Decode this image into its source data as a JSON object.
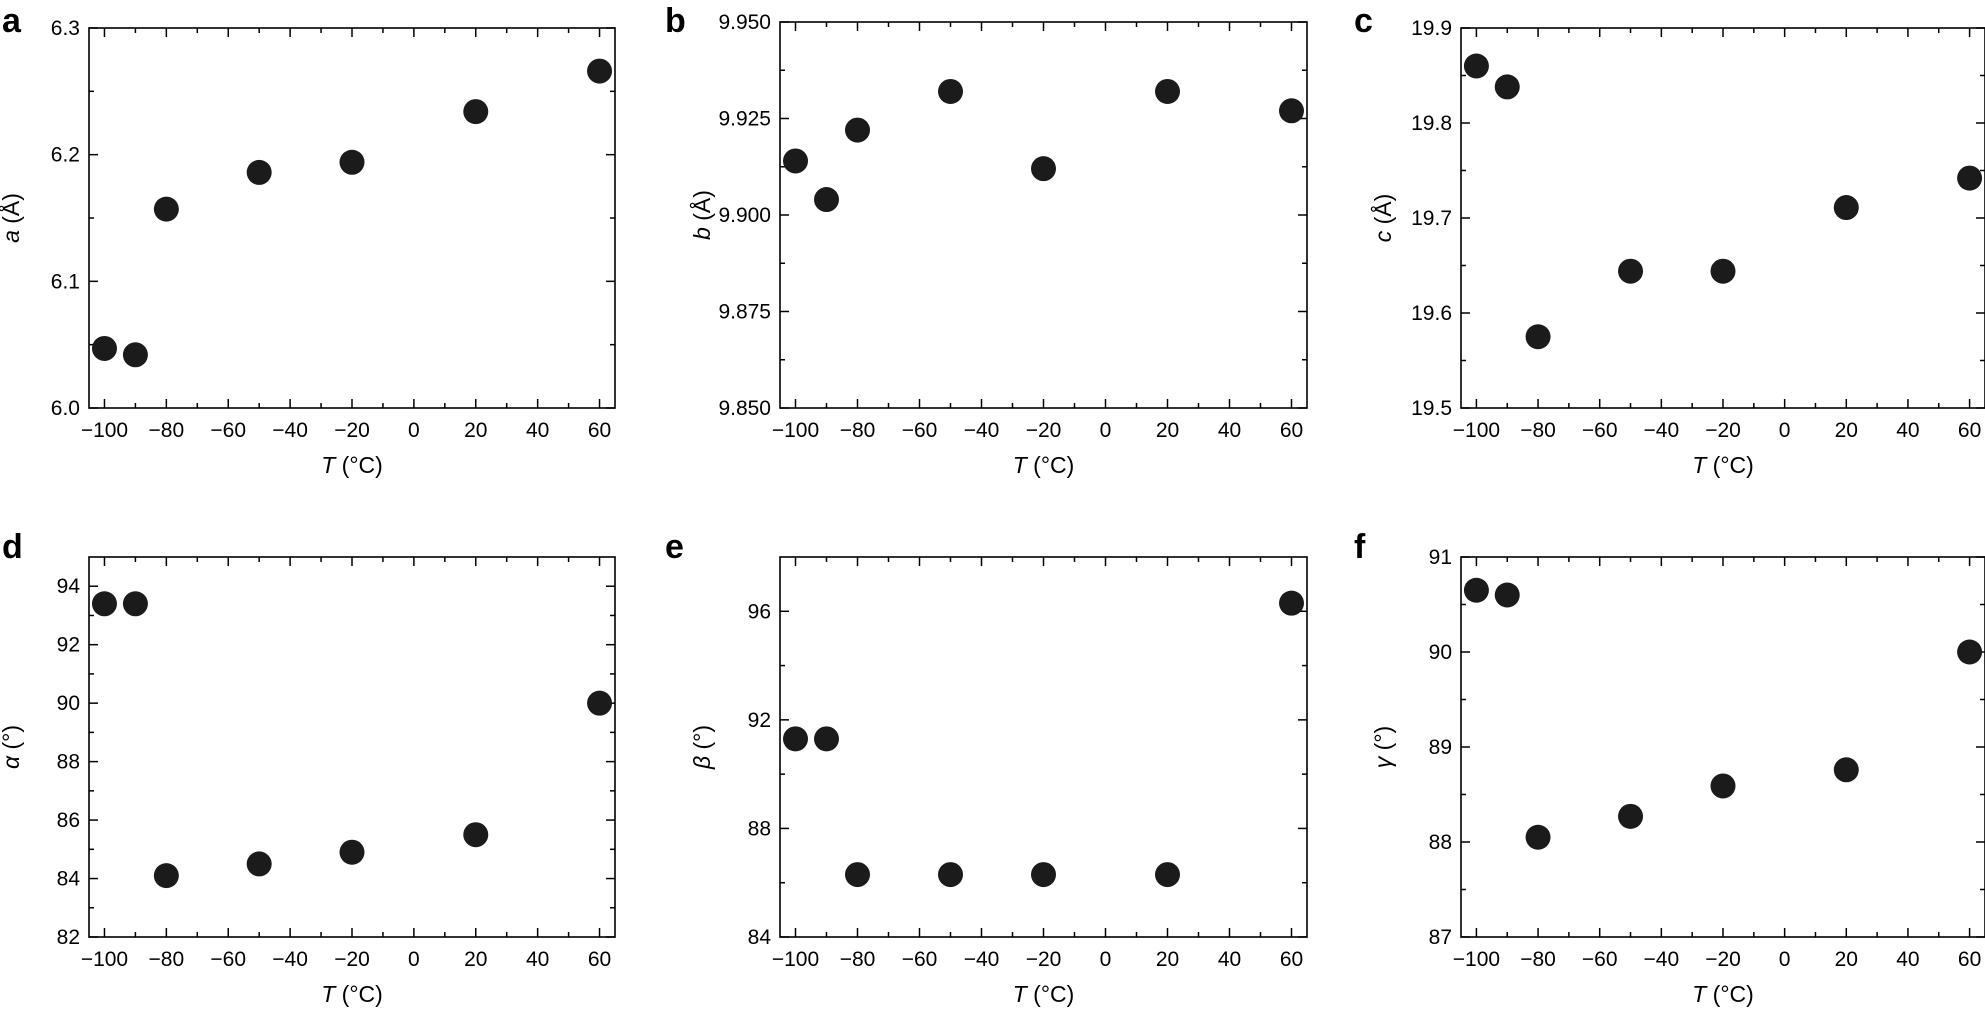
{
  "chart_data": [
    {
      "type": "scatter",
      "panel": "a",
      "xlabel": "T (°C)",
      "xlabel_var": "T",
      "xlabel_unit": " (°C)",
      "ylabel": "a (Å)",
      "ylabel_var": "a",
      "ylabel_unit": " (Å)",
      "xlim": [
        -105,
        65
      ],
      "ylim": [
        6.0,
        6.3
      ],
      "xticks": [
        -100,
        -80,
        -60,
        -40,
        -20,
        0,
        20,
        40,
        60
      ],
      "xtick_labels": [
        "−100",
        "−80",
        "−60",
        "−40",
        "−20",
        "0",
        "20",
        "40",
        "60"
      ],
      "yticks": [
        6.0,
        6.1,
        6.2,
        6.3
      ],
      "ytick_labels": [
        "6.0",
        "6.1",
        "6.2",
        "6.3"
      ],
      "x": [
        -100,
        -90,
        -80,
        -50,
        -20,
        20,
        60
      ],
      "y": [
        6.047,
        6.042,
        6.157,
        6.186,
        6.194,
        6.234,
        6.266
      ]
    },
    {
      "type": "scatter",
      "panel": "b",
      "xlabel": "T (°C)",
      "xlabel_var": "T",
      "xlabel_unit": " (°C)",
      "ylabel": "b (Å)",
      "ylabel_var": "b",
      "ylabel_unit": " (Å)",
      "xlim": [
        -105,
        65
      ],
      "ylim": [
        9.85,
        9.95
      ],
      "xticks": [
        -100,
        -80,
        -60,
        -40,
        -20,
        0,
        20,
        40,
        60
      ],
      "xtick_labels": [
        "−100",
        "−80",
        "−60",
        "−40",
        "−20",
        "0",
        "20",
        "40",
        "60"
      ],
      "yticks": [
        9.85,
        9.875,
        9.9,
        9.925,
        9.95
      ],
      "ytick_labels": [
        "9.850",
        "9.875",
        "9.900",
        "9.925",
        "9.950"
      ],
      "x": [
        -100,
        -90,
        -80,
        -50,
        -20,
        20,
        60
      ],
      "y": [
        9.914,
        9.904,
        9.922,
        9.932,
        9.912,
        9.932,
        9.927
      ]
    },
    {
      "type": "scatter",
      "panel": "c",
      "xlabel": "T (°C)",
      "xlabel_var": "T",
      "xlabel_unit": " (°C)",
      "ylabel": "c (Å)",
      "ylabel_var": "c",
      "ylabel_unit": " (Å)",
      "xlim": [
        -105,
        65
      ],
      "ylim": [
        19.5,
        19.9
      ],
      "xticks": [
        -100,
        -80,
        -60,
        -40,
        -20,
        0,
        20,
        40,
        60
      ],
      "xtick_labels": [
        "−100",
        "−80",
        "−60",
        "−40",
        "−20",
        "0",
        "20",
        "40",
        "60"
      ],
      "yticks": [
        19.5,
        19.6,
        19.7,
        19.8,
        19.9
      ],
      "ytick_labels": [
        "19.5",
        "19.6",
        "19.7",
        "19.8",
        "19.9"
      ],
      "x": [
        -100,
        -90,
        -80,
        -50,
        -20,
        20,
        60
      ],
      "y": [
        19.86,
        19.838,
        19.575,
        19.644,
        19.644,
        19.711,
        19.742
      ]
    },
    {
      "type": "scatter",
      "panel": "d",
      "xlabel": "T (°C)",
      "xlabel_var": "T",
      "xlabel_unit": " (°C)",
      "ylabel": "α (°)",
      "ylabel_var": "α",
      "ylabel_unit": " (°)",
      "xlim": [
        -105,
        65
      ],
      "ylim": [
        82,
        95
      ],
      "xticks": [
        -100,
        -80,
        -60,
        -40,
        -20,
        0,
        20,
        40,
        60
      ],
      "xtick_labels": [
        "−100",
        "−80",
        "−60",
        "−40",
        "−20",
        "0",
        "20",
        "40",
        "60"
      ],
      "yticks": [
        82,
        84,
        86,
        88,
        90,
        92,
        94
      ],
      "ytick_labels": [
        "82",
        "84",
        "86",
        "88",
        "90",
        "92",
        "94"
      ],
      "x": [
        -100,
        -90,
        -80,
        -50,
        -20,
        20,
        60
      ],
      "y": [
        93.4,
        93.4,
        84.1,
        84.5,
        84.9,
        85.5,
        90.0
      ]
    },
    {
      "type": "scatter",
      "panel": "e",
      "xlabel": "T (°C)",
      "xlabel_var": "T",
      "xlabel_unit": " (°C)",
      "ylabel": "β (°)",
      "ylabel_var": "β",
      "ylabel_unit": " (°)",
      "xlim": [
        -105,
        65
      ],
      "ylim": [
        84,
        98
      ],
      "xticks": [
        -100,
        -80,
        -60,
        -40,
        -20,
        0,
        20,
        40,
        60
      ],
      "xtick_labels": [
        "−100",
        "−80",
        "−60",
        "−40",
        "−20",
        "0",
        "20",
        "40",
        "60"
      ],
      "yticks": [
        84,
        88,
        92,
        96
      ],
      "ytick_labels": [
        "84",
        "88",
        "92",
        "96"
      ],
      "x": [
        -100,
        -90,
        -80,
        -50,
        -20,
        20,
        60
      ],
      "y": [
        91.3,
        91.3,
        86.3,
        86.3,
        86.3,
        86.3,
        96.3
      ]
    },
    {
      "type": "scatter",
      "panel": "f",
      "xlabel": "T (°C)",
      "xlabel_var": "T",
      "xlabel_unit": " (°C)",
      "ylabel": "γ (°)",
      "ylabel_var": "γ",
      "ylabel_unit": " (°)",
      "xlim": [
        -105,
        65
      ],
      "ylim": [
        87,
        91
      ],
      "xticks": [
        -100,
        -80,
        -60,
        -40,
        -20,
        0,
        20,
        40,
        60
      ],
      "xtick_labels": [
        "−100",
        "−80",
        "−60",
        "−40",
        "−20",
        "0",
        "20",
        "40",
        "60"
      ],
      "yticks": [
        87,
        88,
        89,
        90,
        91
      ],
      "ytick_labels": [
        "87",
        "88",
        "89",
        "90",
        "91"
      ],
      "x": [
        -100,
        -90,
        -80,
        -50,
        -20,
        20,
        60
      ],
      "y": [
        90.65,
        90.6,
        88.05,
        88.27,
        88.59,
        88.76,
        90.0
      ]
    }
  ]
}
